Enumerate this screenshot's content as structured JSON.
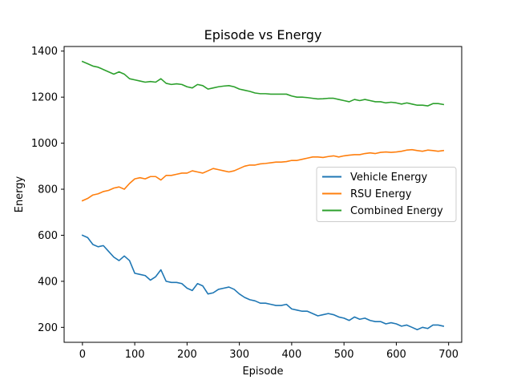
{
  "chart_data": {
    "type": "line",
    "title": "Episode vs Energy",
    "xlabel": "Episode",
    "ylabel": "Energy",
    "xlim": [
      -35,
      725
    ],
    "ylim": [
      135,
      1420
    ],
    "xticks": [
      0,
      100,
      200,
      300,
      400,
      500,
      600,
      700
    ],
    "yticks": [
      200,
      400,
      600,
      800,
      1000,
      1200,
      1400
    ],
    "grid": false,
    "legend_position": "center-right",
    "series": [
      {
        "name": "Vehicle Energy",
        "color": "#1f77b4",
        "x": [
          0,
          10,
          20,
          30,
          40,
          50,
          60,
          70,
          80,
          90,
          100,
          110,
          120,
          130,
          140,
          150,
          160,
          170,
          180,
          190,
          200,
          210,
          220,
          230,
          240,
          250,
          260,
          270,
          280,
          290,
          300,
          310,
          320,
          330,
          340,
          350,
          360,
          370,
          380,
          390,
          400,
          410,
          420,
          430,
          440,
          450,
          460,
          470,
          480,
          490,
          500,
          510,
          520,
          530,
          540,
          550,
          560,
          570,
          580,
          590,
          600,
          610,
          620,
          630,
          640,
          650,
          660,
          670,
          680,
          690
        ],
        "y": [
          600,
          590,
          560,
          550,
          555,
          530,
          505,
          490,
          510,
          490,
          435,
          430,
          425,
          405,
          420,
          450,
          400,
          395,
          395,
          390,
          370,
          360,
          390,
          380,
          345,
          350,
          365,
          370,
          375,
          365,
          345,
          330,
          320,
          315,
          305,
          305,
          300,
          295,
          295,
          300,
          280,
          275,
          270,
          270,
          260,
          250,
          255,
          260,
          255,
          245,
          240,
          230,
          245,
          235,
          240,
          230,
          225,
          225,
          215,
          220,
          215,
          205,
          210,
          200,
          190,
          200,
          195,
          210,
          210,
          205
        ]
      },
      {
        "name": "RSU Energy",
        "color": "#ff7f0e",
        "x": [
          0,
          10,
          20,
          30,
          40,
          50,
          60,
          70,
          80,
          90,
          100,
          110,
          120,
          130,
          140,
          150,
          160,
          170,
          180,
          190,
          200,
          210,
          220,
          230,
          240,
          250,
          260,
          270,
          280,
          290,
          300,
          310,
          320,
          330,
          340,
          350,
          360,
          370,
          380,
          390,
          400,
          410,
          420,
          430,
          440,
          450,
          460,
          470,
          480,
          490,
          500,
          510,
          520,
          530,
          540,
          550,
          560,
          570,
          580,
          590,
          600,
          610,
          620,
          630,
          640,
          650,
          660,
          670,
          680,
          690
        ],
        "y": [
          750,
          760,
          775,
          780,
          790,
          795,
          805,
          810,
          800,
          825,
          845,
          850,
          845,
          855,
          855,
          840,
          860,
          860,
          865,
          870,
          870,
          880,
          875,
          870,
          880,
          890,
          885,
          880,
          875,
          880,
          890,
          900,
          905,
          905,
          910,
          912,
          915,
          918,
          918,
          920,
          925,
          925,
          930,
          935,
          940,
          940,
          938,
          942,
          945,
          940,
          945,
          948,
          950,
          950,
          955,
          958,
          955,
          960,
          962,
          960,
          962,
          965,
          970,
          972,
          968,
          965,
          970,
          968,
          965,
          968
        ]
      },
      {
        "name": "Combined Energy",
        "color": "#2ca02c",
        "x": [
          0,
          10,
          20,
          30,
          40,
          50,
          60,
          70,
          80,
          90,
          100,
          110,
          120,
          130,
          140,
          150,
          160,
          170,
          180,
          190,
          200,
          210,
          220,
          230,
          240,
          250,
          260,
          270,
          280,
          290,
          300,
          310,
          320,
          330,
          340,
          350,
          360,
          370,
          380,
          390,
          400,
          410,
          420,
          430,
          440,
          450,
          460,
          470,
          480,
          490,
          500,
          510,
          520,
          530,
          540,
          550,
          560,
          570,
          580,
          590,
          600,
          610,
          620,
          630,
          640,
          650,
          660,
          670,
          680,
          690
        ],
        "y": [
          1355,
          1345,
          1335,
          1330,
          1320,
          1310,
          1300,
          1310,
          1300,
          1280,
          1275,
          1270,
          1265,
          1268,
          1265,
          1280,
          1260,
          1255,
          1258,
          1255,
          1245,
          1240,
          1255,
          1250,
          1235,
          1240,
          1245,
          1248,
          1250,
          1245,
          1235,
          1230,
          1225,
          1218,
          1215,
          1215,
          1213,
          1213,
          1213,
          1213,
          1205,
          1200,
          1200,
          1198,
          1195,
          1192,
          1193,
          1195,
          1195,
          1190,
          1185,
          1180,
          1190,
          1185,
          1190,
          1185,
          1180,
          1180,
          1175,
          1178,
          1175,
          1170,
          1175,
          1170,
          1165,
          1165,
          1162,
          1172,
          1172,
          1168
        ]
      }
    ]
  }
}
